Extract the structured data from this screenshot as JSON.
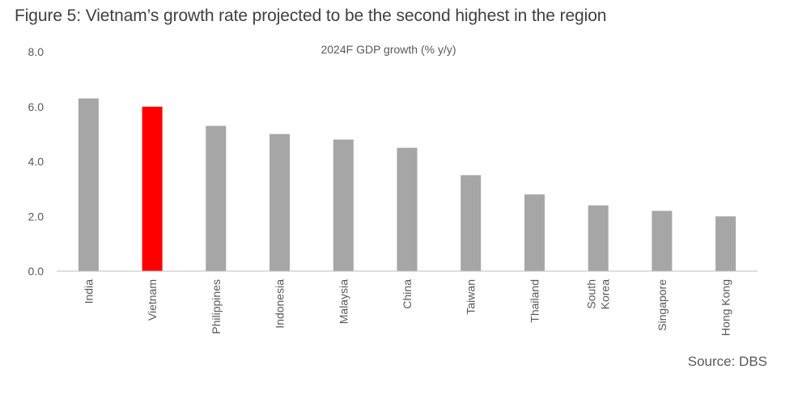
{
  "figure_title": "Figure 5: Vietnam’s growth rate projected to be the second highest in the region",
  "source": "Source: DBS",
  "colors": {
    "bar": "#a6a6a6",
    "highlight": "#ff0000",
    "axis": "#bfbfbf",
    "tick_text": "#595959",
    "title_text": "#404040"
  },
  "chart_data": {
    "type": "bar",
    "title": "2024F GDP growth (% y/y)",
    "xlabel": "",
    "ylabel": "",
    "categories": [
      "India",
      "Vietnam",
      "Philippines",
      "Indonesia",
      "Malaysia",
      "China",
      "Taiwan",
      "Thailand",
      "South Korea",
      "Singapore",
      "Hong Kong"
    ],
    "category_label_lines": [
      [
        "India"
      ],
      [
        "Vietnam"
      ],
      [
        "Philippines"
      ],
      [
        "Indonesia"
      ],
      [
        "Malaysia"
      ],
      [
        "China"
      ],
      [
        "Taiwan"
      ],
      [
        "Thailand"
      ],
      [
        "South",
        "Korea"
      ],
      [
        "Singapore"
      ],
      [
        "Hong Kong"
      ]
    ],
    "values": [
      6.3,
      6.0,
      5.3,
      5.0,
      4.8,
      4.5,
      3.5,
      2.8,
      2.4,
      2.2,
      2.0
    ],
    "highlight_category": "Vietnam",
    "ylim": [
      0,
      8
    ],
    "yticks": [
      0,
      2,
      4,
      6,
      8
    ],
    "ytick_labels": [
      "0.0",
      "2.0",
      "4.0",
      "6.0",
      "8.0"
    ],
    "grid": false,
    "legend": "none"
  }
}
